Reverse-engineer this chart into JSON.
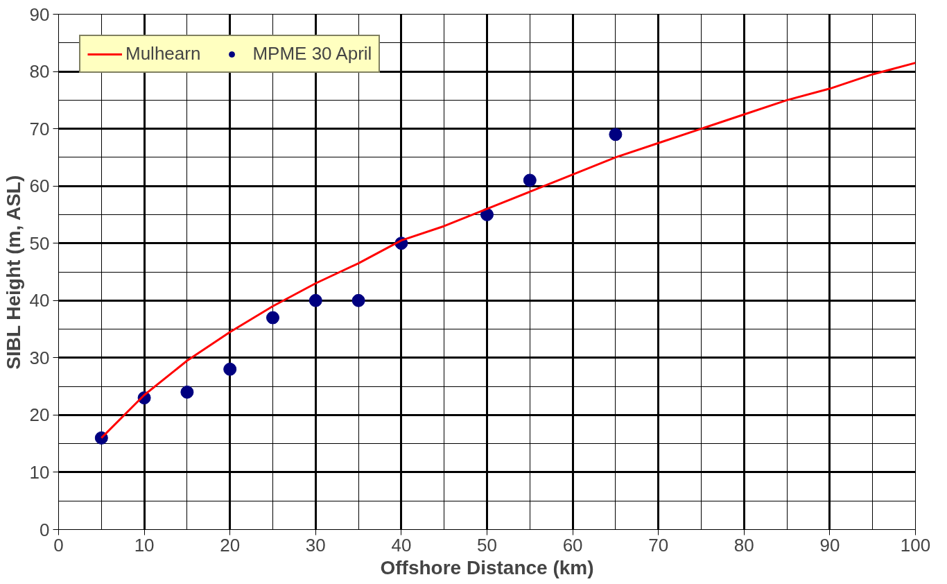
{
  "chart_data": {
    "type": "line",
    "xlabel": "Offshore Distance (km)",
    "ylabel": "SIBL Height (m, ASL)",
    "xlim": [
      0,
      100
    ],
    "xticks": [
      0,
      10,
      20,
      30,
      40,
      50,
      60,
      70,
      80,
      90,
      100
    ],
    "ylim": [
      0,
      90
    ],
    "yticks": [
      0,
      10,
      20,
      30,
      40,
      50,
      60,
      70,
      80,
      90
    ],
    "grid": true,
    "legend": "top left",
    "series": [
      {
        "name": "Mulhearn",
        "color": "#ff0000",
        "marker": "none",
        "line_style": "solid",
        "x": [
          5,
          10,
          15,
          20,
          25,
          30,
          35,
          40,
          45,
          50,
          55,
          60,
          65,
          70,
          75,
          80,
          85,
          90,
          95,
          100
        ],
        "values": [
          16,
          23.5,
          29.5,
          34.5,
          39,
          43,
          46.5,
          50.5,
          53,
          56,
          59,
          62,
          65,
          67.5,
          70,
          72.5,
          75,
          77,
          79.5,
          81.5
        ]
      },
      {
        "name": "MPME 30 April",
        "type": "scatter",
        "color": "#000080",
        "marker": "circle",
        "x": [
          5,
          10,
          15,
          20,
          25,
          30,
          35,
          40,
          50,
          55,
          65
        ],
        "values": [
          16,
          23,
          24,
          28,
          37,
          40,
          40,
          50,
          55,
          61,
          69
        ]
      }
    ]
  }
}
